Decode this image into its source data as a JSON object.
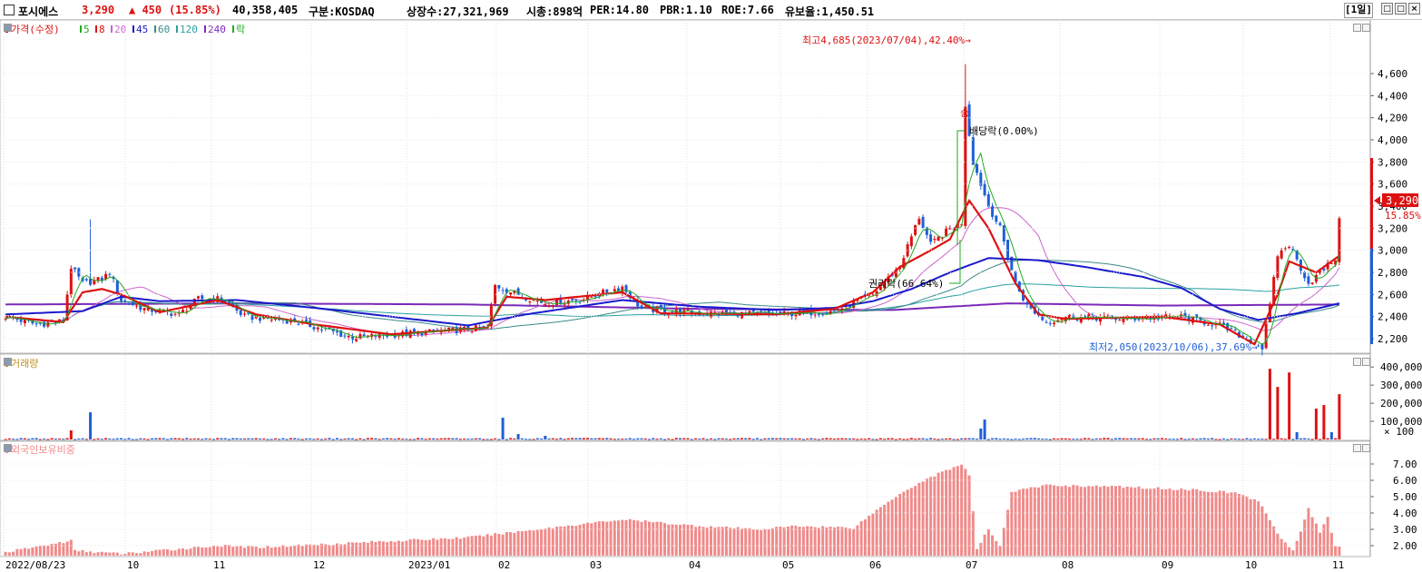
{
  "header": {
    "name": "포시에스",
    "price": "3,290",
    "change": "▲ 450",
    "change_pct": "(15.85%)",
    "volume": "40,358,405",
    "market": "구분:KOSDAQ",
    "shares": "상장수:27,321,969",
    "mktcap": "시총:898억",
    "per": "PER:14.80",
    "pbr": "PBR:1.10",
    "roe": "ROE:7.66",
    "reserve": "유보율:1,450.51",
    "period": "[1일]"
  },
  "window_buttons": [
    "□",
    "□",
    "×"
  ],
  "colors": {
    "up": "#dd1111",
    "down": "#1f5fd6",
    "ma5": "#22aa22",
    "ma8": "#dd1111",
    "ma20": "#cc66cc",
    "ma45": "#1a1acc",
    "ma60": "#3a8a8a",
    "ma120": "#2aa0a0",
    "ma240": "#7a2ab8",
    "foreign": "#f08a8a"
  },
  "price_panel": {
    "legend": {
      "title": "가격(수정)",
      "items": [
        {
          "label": "5",
          "color": "#22aa22"
        },
        {
          "label": "8",
          "color": "#dd1111"
        },
        {
          "label": "20",
          "color": "#cc66cc"
        },
        {
          "label": "45",
          "color": "#1a1acc"
        },
        {
          "label": "60",
          "color": "#3a8a8a"
        },
        {
          "label": "120",
          "color": "#2aa0a0"
        },
        {
          "label": "240",
          "color": "#7a2ab8"
        },
        {
          "label": "락",
          "color": "#22aa22"
        }
      ]
    },
    "y_ticks": [
      "4,600",
      "4,400",
      "4,200",
      "4,000",
      "3,800",
      "3,600",
      "3,400",
      "3,200",
      "3,000",
      "2,800",
      "2,600",
      "2,400",
      "2,200"
    ],
    "current_label": "3,290",
    "current_pct": "15.85%",
    "high_note": "최고4,685(2023/07/04),42.40%→",
    "low_note": "최저2,050(2023/10/06),37.69%→",
    "dividend_note": "배당락(0.00%)",
    "rights_note": "권리락(66.64%)",
    "small_note": "승"
  },
  "volume_panel": {
    "title": "거래량",
    "y_ticks": [
      "400,000",
      "300,000",
      "200,000",
      "100,000"
    ],
    "unit": "× 100"
  },
  "foreign_panel": {
    "title": "외국인보유비중",
    "y_ticks": [
      "7.00",
      "6.00",
      "5.00",
      "4.00",
      "3.00",
      "2.00"
    ]
  },
  "x_axis": [
    "2022/08/23",
    "10",
    "11",
    "12",
    "2023/01",
    "02",
    "03",
    "04",
    "05",
    "06",
    "07",
    "08",
    "09",
    "10",
    "11"
  ],
  "chart_data": {
    "type": "candlestick",
    "price_range": [
      2050,
      4685
    ],
    "high": {
      "value": 4685,
      "date": "2023/07/04",
      "pct": 42.4
    },
    "low": {
      "value": 2050,
      "date": "2023/10/06",
      "pct": 37.69
    },
    "last": {
      "value": 3290,
      "change": 450,
      "change_pct": 15.85
    },
    "close_path": [
      [
        0,
        2400
      ],
      [
        8,
        2330
      ],
      [
        15,
        2360
      ],
      [
        17,
        2850
      ],
      [
        20,
        2700
      ],
      [
        25,
        2740
      ],
      [
        27,
        2800
      ],
      [
        30,
        2550
      ],
      [
        36,
        2470
      ],
      [
        45,
        2420
      ],
      [
        50,
        2560
      ],
      [
        56,
        2560
      ],
      [
        62,
        2400
      ],
      [
        75,
        2360
      ],
      [
        90,
        2210
      ],
      [
        110,
        2260
      ],
      [
        125,
        2300
      ],
      [
        127,
        2680
      ],
      [
        133,
        2600
      ],
      [
        140,
        2520
      ],
      [
        150,
        2560
      ],
      [
        160,
        2670
      ],
      [
        165,
        2470
      ],
      [
        180,
        2430
      ],
      [
        200,
        2420
      ],
      [
        215,
        2450
      ],
      [
        225,
        2600
      ],
      [
        232,
        2860
      ],
      [
        237,
        3300
      ],
      [
        240,
        3050
      ],
      [
        245,
        3200
      ],
      [
        248,
        3250
      ],
      [
        249,
        4300
      ],
      [
        251,
        3800
      ],
      [
        255,
        3400
      ],
      [
        258,
        3200
      ],
      [
        262,
        2700
      ],
      [
        265,
        2500
      ],
      [
        270,
        2350
      ],
      [
        275,
        2400
      ],
      [
        290,
        2380
      ],
      [
        305,
        2400
      ],
      [
        315,
        2320
      ],
      [
        322,
        2200
      ],
      [
        326,
        2120
      ],
      [
        328,
        2500
      ],
      [
        330,
        2960
      ],
      [
        333,
        3050
      ],
      [
        338,
        2700
      ],
      [
        342,
        2830
      ],
      [
        346,
        2960
      ]
    ],
    "ma8_path": [
      [
        0,
        2400
      ],
      [
        15,
        2350
      ],
      [
        20,
        2620
      ],
      [
        25,
        2650
      ],
      [
        30,
        2600
      ],
      [
        40,
        2440
      ],
      [
        55,
        2550
      ],
      [
        65,
        2420
      ],
      [
        80,
        2330
      ],
      [
        100,
        2240
      ],
      [
        125,
        2300
      ],
      [
        130,
        2580
      ],
      [
        140,
        2550
      ],
      [
        160,
        2620
      ],
      [
        170,
        2430
      ],
      [
        200,
        2420
      ],
      [
        215,
        2470
      ],
      [
        225,
        2620
      ],
      [
        232,
        2850
      ],
      [
        240,
        3000
      ],
      [
        245,
        3100
      ],
      [
        250,
        3450
      ],
      [
        255,
        3200
      ],
      [
        262,
        2700
      ],
      [
        268,
        2420
      ],
      [
        275,
        2380
      ],
      [
        300,
        2400
      ],
      [
        315,
        2330
      ],
      [
        324,
        2150
      ],
      [
        330,
        2600
      ],
      [
        333,
        2900
      ],
      [
        340,
        2800
      ],
      [
        346,
        2950
      ]
    ],
    "ma45_path": [
      [
        0,
        2420
      ],
      [
        20,
        2450
      ],
      [
        30,
        2580
      ],
      [
        40,
        2540
      ],
      [
        60,
        2550
      ],
      [
        80,
        2480
      ],
      [
        100,
        2400
      ],
      [
        120,
        2320
      ],
      [
        135,
        2420
      ],
      [
        160,
        2550
      ],
      [
        180,
        2490
      ],
      [
        200,
        2460
      ],
      [
        215,
        2480
      ],
      [
        225,
        2540
      ],
      [
        235,
        2650
      ],
      [
        245,
        2800
      ],
      [
        255,
        2930
      ],
      [
        268,
        2910
      ],
      [
        280,
        2850
      ],
      [
        295,
        2760
      ],
      [
        305,
        2660
      ],
      [
        315,
        2470
      ],
      [
        325,
        2370
      ],
      [
        335,
        2430
      ],
      [
        346,
        2520
      ]
    ],
    "ma240_path": [
      [
        0,
        2510
      ],
      [
        60,
        2520
      ],
      [
        120,
        2510
      ],
      [
        180,
        2470
      ],
      [
        230,
        2460
      ],
      [
        260,
        2520
      ],
      [
        300,
        2500
      ],
      [
        346,
        2510
      ]
    ],
    "volume": [
      [
        17,
        50
      ],
      [
        22,
        150
      ],
      [
        129,
        120
      ],
      [
        133,
        30
      ],
      [
        140,
        20
      ],
      [
        253,
        60
      ],
      [
        254,
        110
      ],
      [
        328,
        390
      ],
      [
        330,
        290
      ],
      [
        333,
        370
      ],
      [
        335,
        40
      ],
      [
        340,
        170
      ],
      [
        342,
        190
      ],
      [
        344,
        40
      ],
      [
        346,
        250
      ],
      [
        347,
        410
      ]
    ],
    "foreign_ratio_points": [
      [
        0,
        1.6
      ],
      [
        17,
        2.3
      ],
      [
        18,
        1.7
      ],
      [
        30,
        1.5
      ],
      [
        55,
        2.0
      ],
      [
        65,
        1.9
      ],
      [
        120,
        2.5
      ],
      [
        145,
        3.2
      ],
      [
        160,
        3.6
      ],
      [
        180,
        3.2
      ],
      [
        195,
        3.0
      ],
      [
        205,
        3.2
      ],
      [
        220,
        3.1
      ],
      [
        225,
        4.0
      ],
      [
        232,
        5.2
      ],
      [
        240,
        6.2
      ],
      [
        246,
        6.8
      ],
      [
        248,
        7.0
      ],
      [
        250,
        6.3
      ],
      [
        252,
        1.8
      ],
      [
        255,
        3.0
      ],
      [
        258,
        2.0
      ],
      [
        261,
        5.3
      ],
      [
        270,
        5.7
      ],
      [
        290,
        5.6
      ],
      [
        310,
        5.4
      ],
      [
        320,
        5.2
      ],
      [
        324,
        4.8
      ],
      [
        325,
        4.7
      ],
      [
        328,
        3.6
      ],
      [
        331,
        2.4
      ],
      [
        334,
        1.7
      ],
      [
        336,
        2.8
      ],
      [
        338,
        4.3
      ],
      [
        341,
        2.8
      ],
      [
        343,
        3.8
      ],
      [
        345,
        1.9
      ],
      [
        346,
        1.9
      ]
    ]
  }
}
